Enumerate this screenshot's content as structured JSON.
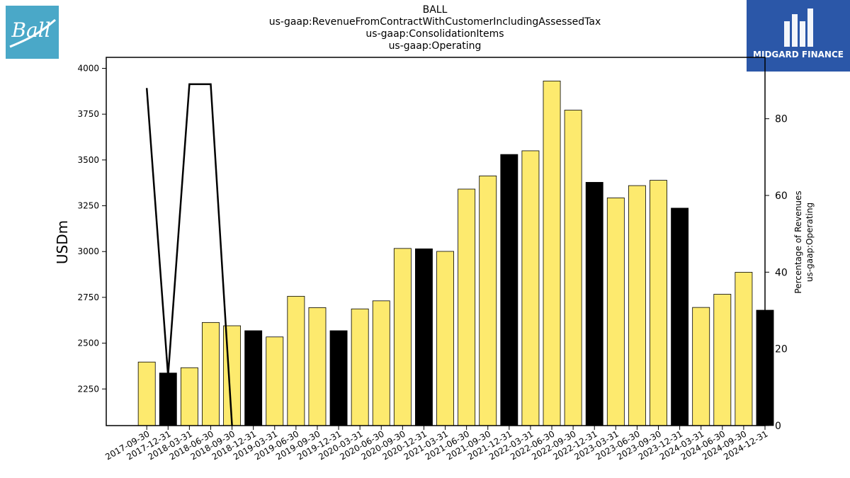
{
  "header": {
    "company": "BALL",
    "concept": "us-gaap:RevenueFromContractWithCustomerIncludingAssessedTax",
    "axis": "us-gaap:ConsolidationItems",
    "member": "us-gaap:Operating"
  },
  "logos": {
    "left_text": "Ball",
    "left_color": "#4aa8c8",
    "right_text": "MIDGARD FINANCE",
    "right_color": "#2b57a8"
  },
  "chart_data": {
    "type": "bar",
    "ylabel": "USDm",
    "y2label_line1": "Percentage of Revenues",
    "y2label_line2": "us-gaap:Operating",
    "ylim": [
      2050,
      4060
    ],
    "y2lim": [
      0,
      96
    ],
    "yticks": [
      2250,
      2500,
      2750,
      3000,
      3250,
      3500,
      3750,
      4000
    ],
    "y2ticks": [
      0,
      20,
      40,
      60,
      80
    ],
    "colors": {
      "quarter": "#fdea6e",
      "annual": "#000000",
      "line": "#000000"
    },
    "categories": [
      "2017-09-30",
      "2017-12-31",
      "2018-03-31",
      "2018-06-30",
      "2018-09-30",
      "2018-12-31",
      "2019-03-31",
      "2019-06-30",
      "2019-09-30",
      "2019-12-31",
      "2020-03-31",
      "2020-06-30",
      "2020-09-30",
      "2020-12-31",
      "2021-03-31",
      "2021-06-30",
      "2021-09-30",
      "2021-12-31",
      "2022-03-31",
      "2022-06-30",
      "2022-09-30",
      "2022-12-31",
      "2023-03-31",
      "2023-06-30",
      "2023-09-30",
      "2023-12-31",
      "2024-03-31",
      "2024-06-30",
      "2024-09-30",
      "2024-12-31"
    ],
    "values": [
      2397,
      2337,
      2366,
      2613,
      2595,
      2568,
      2534,
      2756,
      2694,
      2568,
      2687,
      2731,
      3017,
      3015,
      3001,
      3341,
      3413,
      3530,
      3550,
      3931,
      3772,
      3378,
      3293,
      3360,
      3389,
      3237,
      2695,
      2767,
      2887,
      2680
    ],
    "bar_type": [
      "quarter",
      "annual",
      "quarter",
      "quarter",
      "quarter",
      "annual",
      "quarter",
      "quarter",
      "quarter",
      "annual",
      "quarter",
      "quarter",
      "quarter",
      "annual",
      "quarter",
      "quarter",
      "quarter",
      "annual",
      "quarter",
      "quarter",
      "quarter",
      "annual",
      "quarter",
      "quarter",
      "quarter",
      "annual",
      "quarter",
      "quarter",
      "quarter",
      "annual"
    ],
    "line_series": {
      "name": "Percentage of Revenues",
      "x_index": [
        0,
        1,
        2,
        3,
        4
      ],
      "values": [
        88,
        13,
        89,
        89,
        0
      ]
    }
  }
}
